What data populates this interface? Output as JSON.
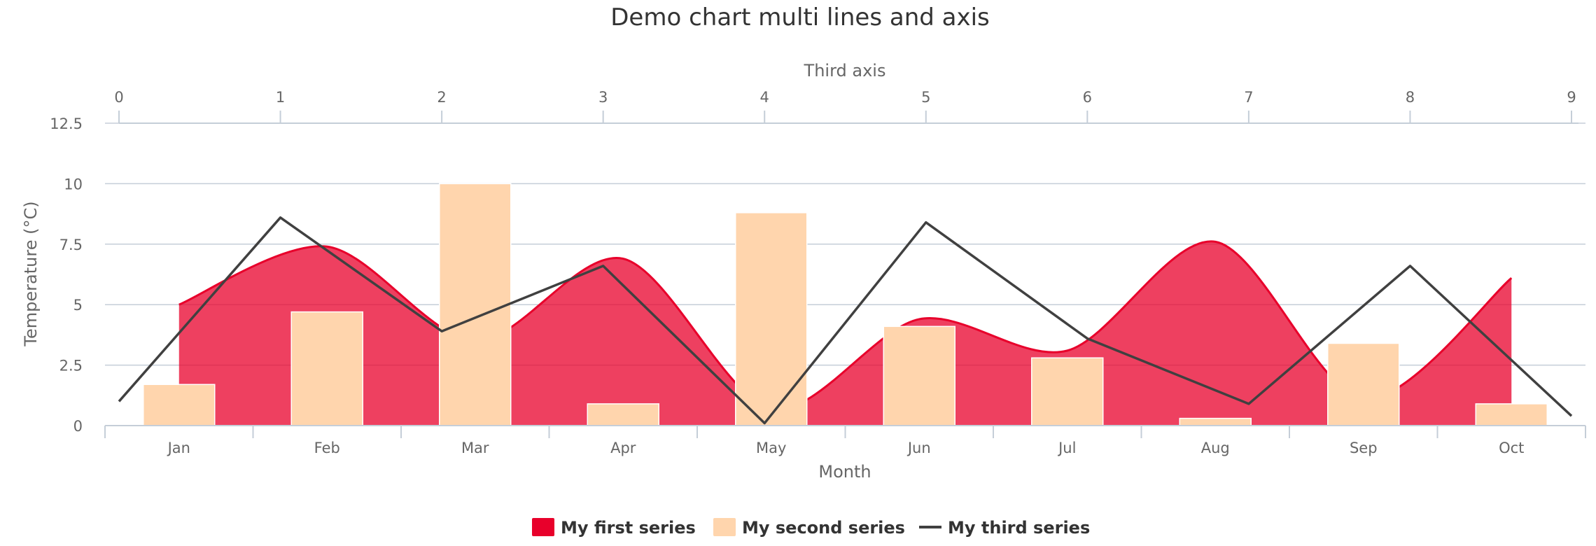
{
  "chart_data": {
    "type": "area",
    "title": "Demo chart multi lines and axis",
    "categories": [
      "Jan",
      "Feb",
      "Mar",
      "Apr",
      "May",
      "Jun",
      "Jul",
      "Aug",
      "Sep",
      "Oct"
    ],
    "xlabel": "Month",
    "ylabel": "Temperature (°C)",
    "ylim": [
      0,
      12.5
    ],
    "yticks": [
      "0",
      "2.5",
      "5",
      "7.5",
      "10",
      "12.5"
    ],
    "secondary_x": {
      "label": "Third axis",
      "ticks": [
        "0",
        "1",
        "2",
        "3",
        "4",
        "5",
        "6",
        "7",
        "8",
        "9"
      ],
      "range": [
        0,
        9
      ]
    },
    "grid": true,
    "legend_position": "bottom-center",
    "series": [
      {
        "name": "My first series",
        "kind": "area-spline",
        "color": "#e8002b",
        "values": [
          5.0,
          7.4,
          3.5,
          6.9,
          0.7,
          4.4,
          3.1,
          7.6,
          1.1,
          6.1
        ]
      },
      {
        "name": "My second series",
        "kind": "column",
        "color": "#ffd5ad",
        "values": [
          1.7,
          4.7,
          10.0,
          0.9,
          8.8,
          4.1,
          2.8,
          0.3,
          3.4,
          0.9
        ]
      },
      {
        "name": "My third series",
        "kind": "line",
        "axis": "secondary_x",
        "color": "#404040",
        "x": [
          0,
          1,
          2,
          3,
          4,
          5,
          6,
          7,
          8,
          9
        ],
        "values": [
          1.0,
          8.6,
          3.9,
          6.6,
          0.1,
          8.4,
          3.6,
          0.9,
          6.6,
          0.4
        ]
      }
    ]
  }
}
